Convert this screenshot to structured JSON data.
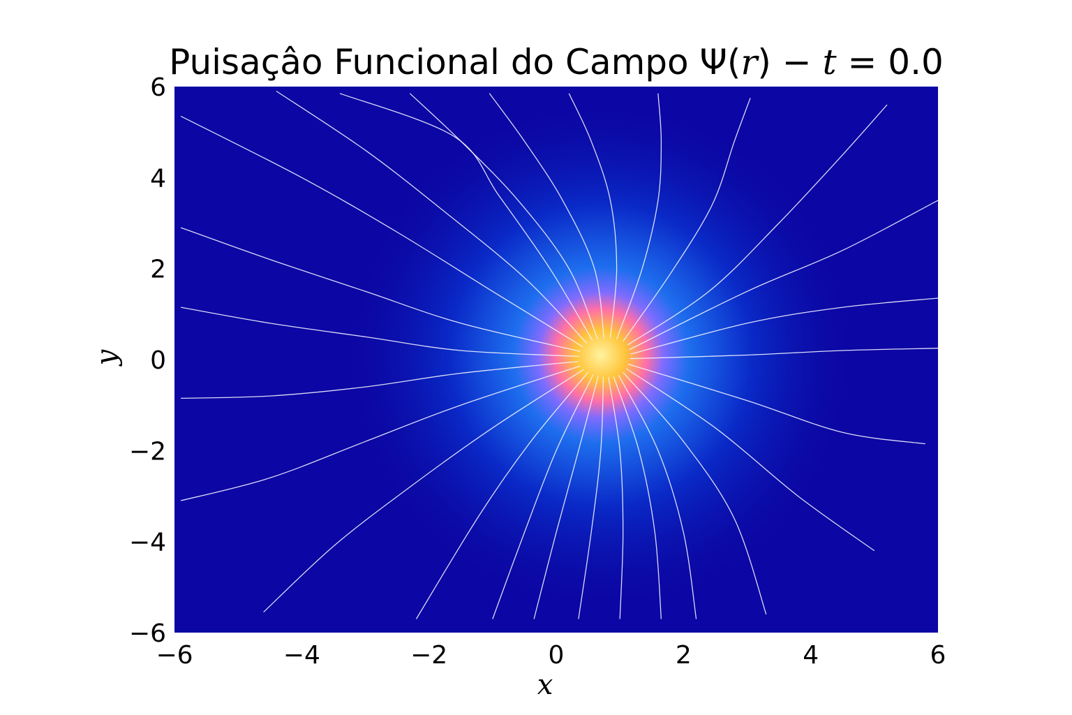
{
  "chart_data": {
    "type": "heatmap",
    "title": {
      "prefix": "Puisaçâo Funcional do Campo ",
      "psi": "Ψ",
      "open_paren": "(",
      "var_r": "r",
      "close_paren": ")",
      "minus": " − ",
      "var_t": "t",
      "equals": " = ",
      "time_value": "0.0"
    },
    "xlabel": "x",
    "ylabel": "y",
    "xlim": [
      -6,
      6
    ],
    "ylim": [
      -6,
      6
    ],
    "x_ticks": [
      {
        "value": -6,
        "label": "−6"
      },
      {
        "value": -4,
        "label": "−4"
      },
      {
        "value": -2,
        "label": "−2"
      },
      {
        "value": 0,
        "label": "0"
      },
      {
        "value": 2,
        "label": "2"
      },
      {
        "value": 4,
        "label": "4"
      },
      {
        "value": 6,
        "label": "6"
      }
    ],
    "y_ticks": [
      {
        "value": -6,
        "label": "−6"
      },
      {
        "value": -4,
        "label": "−4"
      },
      {
        "value": -2,
        "label": "−2"
      },
      {
        "value": 0,
        "label": "0"
      },
      {
        "value": 2,
        "label": "2"
      },
      {
        "value": 4,
        "label": "4"
      },
      {
        "value": 6,
        "label": "6"
      }
    ],
    "grid": false,
    "field_center": [
      0.7,
      0.1
    ],
    "colormap": [
      "#0a0aa0",
      "#0a2ac8",
      "#1e6eee",
      "#7f6cff",
      "#ff6fa8",
      "#ffc43a",
      "#fff3a0"
    ],
    "background_color": "#0c06a4",
    "streamline_color": "#f2f2ff",
    "streamlines": [
      [
        [
          0.65,
          0.45
        ],
        [
          0.2,
          2.0
        ],
        [
          -0.6,
          3.5
        ],
        [
          -1.5,
          4.8
        ],
        [
          -2.3,
          5.85
        ]
      ],
      [
        [
          0.75,
          0.47
        ],
        [
          0.6,
          2.0
        ],
        [
          0.1,
          3.5
        ],
        [
          -0.5,
          4.8
        ],
        [
          -1.05,
          5.85
        ]
      ],
      [
        [
          0.85,
          0.48
        ],
        [
          0.95,
          2.0
        ],
        [
          0.85,
          3.5
        ],
        [
          0.55,
          4.8
        ],
        [
          0.2,
          5.85
        ]
      ],
      [
        [
          0.95,
          0.45
        ],
        [
          1.35,
          2.0
        ],
        [
          1.6,
          3.5
        ],
        [
          1.65,
          4.8
        ],
        [
          1.6,
          5.85
        ]
      ],
      [
        [
          1.05,
          0.4
        ],
        [
          1.8,
          1.9
        ],
        [
          2.45,
          3.4
        ],
        [
          2.8,
          4.8
        ],
        [
          3.05,
          5.75
        ]
      ],
      [
        [
          1.12,
          0.32
        ],
        [
          2.4,
          1.5
        ],
        [
          3.5,
          3.0
        ],
        [
          4.5,
          4.5
        ],
        [
          5.2,
          5.6
        ]
      ],
      [
        [
          1.15,
          0.22
        ],
        [
          3.0,
          1.5
        ],
        [
          4.5,
          2.4
        ],
        [
          6.0,
          3.5
        ]
      ],
      [
        [
          1.17,
          0.12
        ],
        [
          3.0,
          0.8
        ],
        [
          4.5,
          1.15
        ],
        [
          6.0,
          1.35
        ]
      ],
      [
        [
          1.16,
          0.02
        ],
        [
          3.0,
          0.1
        ],
        [
          4.5,
          0.2
        ],
        [
          6.0,
          0.25
        ]
      ],
      [
        [
          1.13,
          -0.1
        ],
        [
          3.0,
          -0.9
        ],
        [
          4.5,
          -1.6
        ],
        [
          5.8,
          -1.85
        ]
      ],
      [
        [
          1.1,
          -0.2
        ],
        [
          2.5,
          -1.5
        ],
        [
          3.8,
          -3.0
        ],
        [
          5.0,
          -4.2
        ]
      ],
      [
        [
          1.05,
          -0.28
        ],
        [
          2.0,
          -1.8
        ],
        [
          2.8,
          -3.5
        ],
        [
          3.3,
          -5.6
        ]
      ],
      [
        [
          0.98,
          -0.34
        ],
        [
          1.6,
          -2.0
        ],
        [
          2.0,
          -3.8
        ],
        [
          2.2,
          -5.7
        ]
      ],
      [
        [
          0.9,
          -0.37
        ],
        [
          1.3,
          -2.0
        ],
        [
          1.55,
          -3.8
        ],
        [
          1.65,
          -5.7
        ]
      ],
      [
        [
          0.82,
          -0.38
        ],
        [
          1.0,
          -2.0
        ],
        [
          1.05,
          -3.8
        ],
        [
          1.0,
          -5.7
        ]
      ],
      [
        [
          0.74,
          -0.38
        ],
        [
          0.7,
          -2.0
        ],
        [
          0.55,
          -3.8
        ],
        [
          0.35,
          -5.7
        ]
      ],
      [
        [
          0.66,
          -0.36
        ],
        [
          0.35,
          -2.0
        ],
        [
          0.0,
          -3.8
        ],
        [
          -0.35,
          -5.7
        ]
      ],
      [
        [
          0.58,
          -0.33
        ],
        [
          0.0,
          -2.0
        ],
        [
          -0.5,
          -3.8
        ],
        [
          -1.0,
          -5.7
        ]
      ],
      [
        [
          0.5,
          -0.28
        ],
        [
          -0.4,
          -1.8
        ],
        [
          -1.2,
          -3.4
        ],
        [
          -2.2,
          -5.7
        ]
      ],
      [
        [
          0.43,
          -0.22
        ],
        [
          -1.0,
          -1.5
        ],
        [
          -2.3,
          -2.8
        ],
        [
          -3.5,
          -4.1
        ],
        [
          -4.6,
          -5.55
        ]
      ],
      [
        [
          0.38,
          -0.14
        ],
        [
          -1.5,
          -1.0
        ],
        [
          -3.0,
          -1.8
        ],
        [
          -4.5,
          -2.6
        ],
        [
          -5.9,
          -3.1
        ]
      ],
      [
        [
          0.35,
          -0.04
        ],
        [
          -1.5,
          -0.3
        ],
        [
          -3.0,
          -0.6
        ],
        [
          -4.5,
          -0.8
        ],
        [
          -5.9,
          -0.85
        ]
      ],
      [
        [
          0.36,
          0.07
        ],
        [
          -1.5,
          0.2
        ],
        [
          -3.0,
          0.5
        ],
        [
          -4.5,
          0.8
        ],
        [
          -5.9,
          1.15
        ]
      ],
      [
        [
          0.38,
          0.18
        ],
        [
          -1.5,
          0.8
        ],
        [
          -3.0,
          1.5
        ],
        [
          -4.5,
          2.2
        ],
        [
          -5.9,
          2.9
        ]
      ],
      [
        [
          0.42,
          0.28
        ],
        [
          -1.0,
          1.5
        ],
        [
          -2.5,
          2.8
        ],
        [
          -4.0,
          4.0
        ],
        [
          -5.9,
          5.35
        ]
      ],
      [
        [
          0.48,
          0.36
        ],
        [
          -0.5,
          1.8
        ],
        [
          -1.8,
          3.3
        ],
        [
          -3.0,
          4.6
        ],
        [
          -4.4,
          5.9
        ]
      ],
      [
        [
          0.57,
          0.42
        ],
        [
          -0.1,
          2.0
        ],
        [
          -0.9,
          3.6
        ],
        [
          -1.6,
          4.9
        ],
        [
          -3.4,
          5.85
        ]
      ]
    ]
  }
}
